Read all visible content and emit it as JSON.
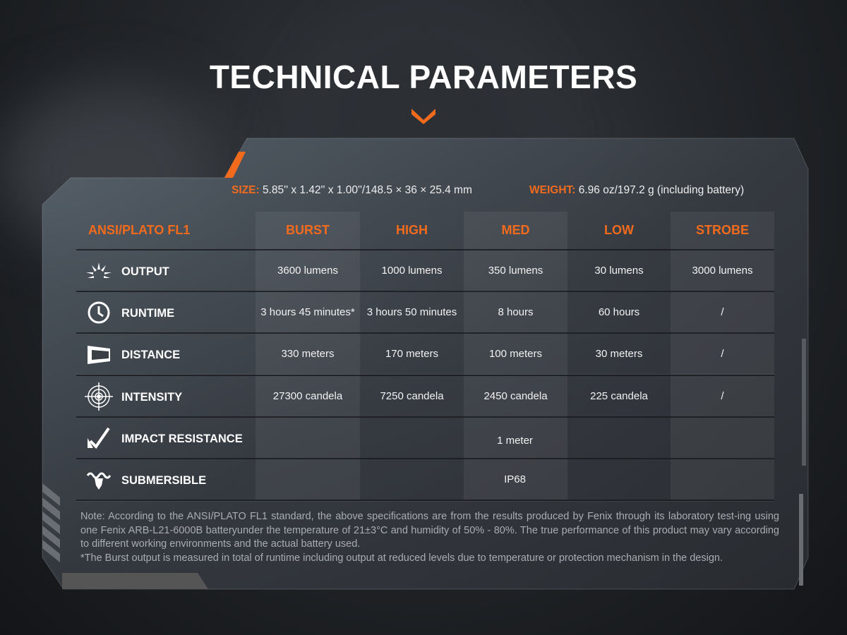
{
  "title": "TECHNICAL PARAMETERS",
  "accent": "#f26b1d",
  "size": {
    "label": "SIZE:",
    "value": "5.85'' x 1.42'' x 1.00''/148.5 × 36 × 25.4 mm"
  },
  "weight": {
    "label": "WEIGHT:",
    "value": "6.96 oz/197.2 g (including battery)"
  },
  "table": {
    "header": [
      "ANSI/PLATO FL1",
      "BURST",
      "HIGH",
      "MED",
      "LOW",
      "STROBE"
    ],
    "rows": [
      {
        "label": "OUTPUT",
        "icon": "burst-light-icon",
        "values": [
          "3600 lumens",
          "1000 lumens",
          "350 lumens",
          "30 lumens",
          "3000 lumens"
        ]
      },
      {
        "label": "RUNTIME",
        "icon": "clock-icon",
        "values": [
          "3 hours 45 minutes*",
          "3 hours 50 minutes",
          "8 hours",
          "60 hours",
          "/"
        ]
      },
      {
        "label": "DISTANCE",
        "icon": "beam-distance-icon",
        "values": [
          "330 meters",
          "170 meters",
          "100 meters",
          "30 meters",
          "/"
        ]
      },
      {
        "label": "INTENSITY",
        "icon": "target-icon",
        "values": [
          "27300 candela",
          "7250 candela",
          "2450 candela",
          "225 candela",
          "/"
        ]
      },
      {
        "label": "IMPACT RESISTANCE",
        "icon": "impact-check-icon",
        "span": "1 meter"
      },
      {
        "label": "SUBMERSIBLE",
        "icon": "submersible-icon",
        "span": "IP68"
      }
    ]
  },
  "note": [
    "Note: According to the ANSI/PLATO FL1 standard, the above specifications are from the results produced by Fenix through its laboratory test-ing using one Fenix ARB-L21-6000B batteryunder the temperature of 21±3°C and humidity of 50% - 80%. The true performance of this product may vary according to different working environments and the actual battery used.",
    "*The Burst output is measured in total of runtime including output at reduced levels due to temperature or protection mechanism in the design."
  ]
}
